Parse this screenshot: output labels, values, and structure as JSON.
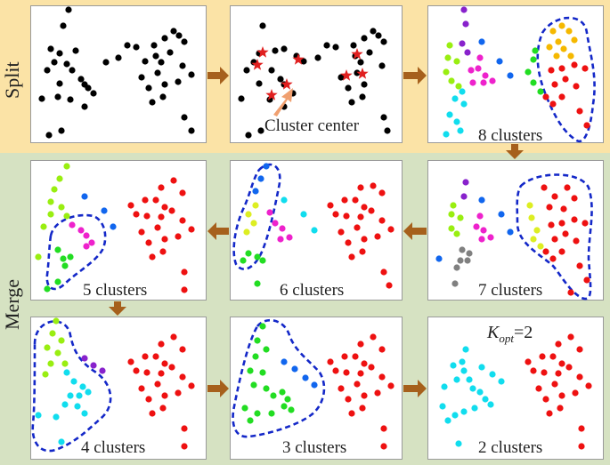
{
  "side_labels": {
    "split": "Split",
    "merge": "Merge"
  },
  "panels": [
    {
      "id": "p1",
      "caption": ""
    },
    {
      "id": "p2",
      "caption": "Cluster center"
    },
    {
      "id": "p3",
      "caption": "8 clusters"
    },
    {
      "id": "p4",
      "caption": "5 clusters"
    },
    {
      "id": "p5",
      "caption": "6 clusters"
    },
    {
      "id": "p6",
      "caption": "7 clusters"
    },
    {
      "id": "p7",
      "caption": "4 clusters"
    },
    {
      "id": "p8",
      "caption": "3 clusters"
    },
    {
      "id": "p9",
      "caption": "2 clusters"
    }
  ],
  "kopt": {
    "symbol": "K",
    "subscript": "opt",
    "value": "=2"
  },
  "colors": {
    "split_band": "#fbe3a6",
    "merge_band": "#d6e2c2",
    "arrow": "#a6601c",
    "boundary": "#1428c8",
    "center_star": "#e02020",
    "black": "#000000",
    "red": "#ee1111",
    "orange": "#f5b800",
    "green": "#22dd22",
    "lime": "#99ee11",
    "cyan": "#11ddee",
    "magenta": "#ee22cc",
    "blue": "#1166ee",
    "purple": "#8822cc",
    "yellow": "#ddee22",
    "gray": "#808080"
  }
}
